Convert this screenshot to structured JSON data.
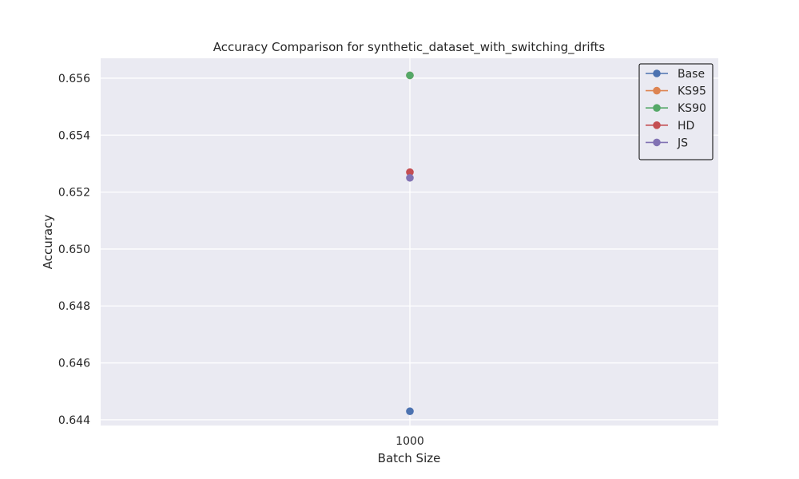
{
  "chart_data": {
    "type": "line",
    "title": "Accuracy Comparison for synthetic_dataset_with_switching_drifts",
    "xlabel": "Batch Size",
    "ylabel": "Accuracy",
    "x": [
      1000
    ],
    "x_tick_labels": [
      "1000"
    ],
    "ylim": [
      0.6438,
      0.6567
    ],
    "y_ticks": [
      0.644,
      0.646,
      0.648,
      0.65,
      0.652,
      0.654,
      0.656
    ],
    "y_tick_labels": [
      "0.644",
      "0.646",
      "0.648",
      "0.650",
      "0.652",
      "0.654",
      "0.656"
    ],
    "grid": true,
    "legend_position": "top-right",
    "series": [
      {
        "name": "Base",
        "values": [
          0.6443
        ],
        "color": "#4c72b0"
      },
      {
        "name": "KS95",
        "values": [
          0.6561
        ],
        "color": "#dd8452"
      },
      {
        "name": "KS90",
        "values": [
          0.6561
        ],
        "color": "#55a868"
      },
      {
        "name": "HD",
        "values": [
          0.6527
        ],
        "color": "#c44e52"
      },
      {
        "name": "JS",
        "values": [
          0.6525
        ],
        "color": "#8172b3"
      }
    ]
  },
  "colors": {
    "plot_background": "#eaeaf2",
    "grid": "#ffffff",
    "text": "#262626"
  }
}
